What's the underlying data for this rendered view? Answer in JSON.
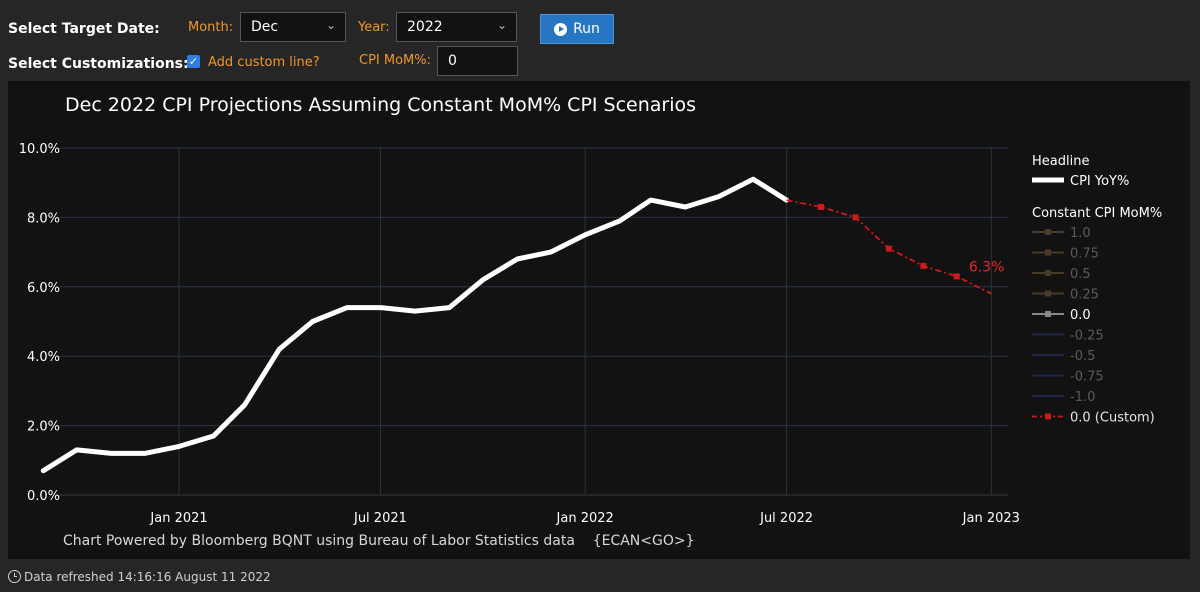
{
  "controls": {
    "target_date_label": "Select Target Date:",
    "month_label": "Month:",
    "month_value": "Dec",
    "year_label": "Year:",
    "year_value": "2022",
    "run_label": "Run",
    "customizations_label": "Select Customizations:",
    "custom_line_label": "Add custom line?",
    "custom_line_checked": true,
    "mom_label": "CPI MoM%:",
    "mom_value": "0"
  },
  "chart_data": {
    "type": "line",
    "title": "Dec 2022 CPI Projections Assuming Constant MoM% CPI Scenarios",
    "xlabel": "",
    "ylabel": "",
    "yticks": [
      "0.0%",
      "2.0%",
      "4.0%",
      "6.0%",
      "8.0%",
      "10.0%"
    ],
    "ylim": [
      0,
      10
    ],
    "xlim": [
      "2020-09-16",
      "2023-01-16"
    ],
    "xticks": [
      {
        "date": "2021-01-01",
        "label": "Jan 2021"
      },
      {
        "date": "2021-07-01",
        "label": "Jul 2021"
      },
      {
        "date": "2022-01-01",
        "label": "Jan 2022"
      },
      {
        "date": "2022-07-01",
        "label": "Jul 2022"
      },
      {
        "date": "2023-01-01",
        "label": "Jan 2023"
      }
    ],
    "grid": true,
    "legend_position": "right",
    "series": [
      {
        "name": "CPI YoY%",
        "group": "Headline",
        "color": "#ffffff",
        "x": [
          "2020-09-01",
          "2020-10-01",
          "2020-11-01",
          "2020-12-01",
          "2021-01-01",
          "2021-02-01",
          "2021-03-01",
          "2021-04-01",
          "2021-05-01",
          "2021-06-01",
          "2021-07-01",
          "2021-08-01",
          "2021-09-01",
          "2021-10-01",
          "2021-11-01",
          "2021-12-01",
          "2022-01-01",
          "2022-02-01",
          "2022-03-01",
          "2022-04-01",
          "2022-05-01",
          "2022-06-01",
          "2022-07-01"
        ],
        "values": [
          0.7,
          1.3,
          1.2,
          1.2,
          1.4,
          1.7,
          2.6,
          4.2,
          5.0,
          5.4,
          5.4,
          5.3,
          5.4,
          6.2,
          6.8,
          7.0,
          7.5,
          7.9,
          8.5,
          8.3,
          8.6,
          9.1,
          8.5
        ]
      },
      {
        "name": "0.0 (Custom)",
        "group": "Constant CPI MoM%",
        "color": "#d0191b",
        "x": [
          "2022-07-01",
          "2022-08-01",
          "2022-09-01",
          "2022-10-01",
          "2022-11-01",
          "2022-12-01",
          "2023-01-01"
        ],
        "values": [
          8.5,
          8.3,
          8.0,
          7.1,
          6.6,
          6.3,
          5.8
        ]
      }
    ],
    "legend": {
      "headline_title": "Headline",
      "headline_items": [
        {
          "label": "CPI YoY%",
          "color": "#ffffff"
        }
      ],
      "mom_title": "Constant CPI MoM%",
      "mom_items": [
        {
          "label": "1.0",
          "color": "#4a3a2a",
          "text_color": "#5a5a5a",
          "marker": "square"
        },
        {
          "label": "0.75",
          "color": "#4a3a2a",
          "text_color": "#5a5a5a",
          "marker": "tri"
        },
        {
          "label": "0.5",
          "color": "#4a3a2a",
          "text_color": "#5a5a5a",
          "marker": "diamond"
        },
        {
          "label": "0.25",
          "color": "#4a3a2a",
          "text_color": "#5a5a5a",
          "marker": "cross"
        },
        {
          "label": "0.0",
          "color": "#888888",
          "text_color": "#ffffff",
          "marker": "square"
        },
        {
          "label": "-0.25",
          "color": "#1e2650",
          "text_color": "#5a5a5a",
          "marker": "none"
        },
        {
          "label": "-0.5",
          "color": "#1e2650",
          "text_color": "#5a5a5a",
          "marker": "none"
        },
        {
          "label": "-0.75",
          "color": "#1e2650",
          "text_color": "#5a5a5a",
          "marker": "none"
        },
        {
          "label": "-1.0",
          "color": "#1e2650",
          "text_color": "#5a5a5a",
          "marker": "none"
        },
        {
          "label": "0.0 (Custom)",
          "color": "#d0191b",
          "text_color": "#e6e6e6",
          "marker": "square"
        }
      ]
    },
    "annotation": {
      "text": "6.3%",
      "x": "2022-12-01",
      "y": 6.3,
      "color": "#e8282b"
    },
    "source_note": "Chart Powered by Bloomberg BQNT using Bureau of Labor Statistics data    {ECAN<GO>}"
  },
  "footer": {
    "refresh_text": "Data refreshed 14:16:16 August 11 2022"
  }
}
